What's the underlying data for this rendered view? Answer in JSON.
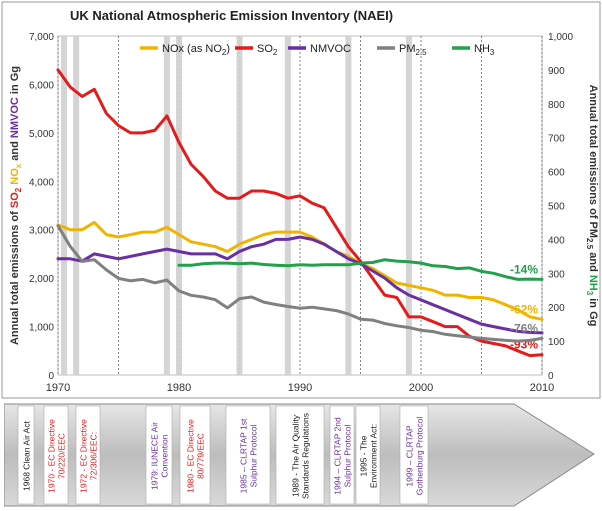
{
  "chart_data": {
    "type": "line",
    "title": "UK National Atmospheric Emission Inventory (NAEI)",
    "xlim": [
      1970,
      2010
    ],
    "x_ticks": [
      "1970",
      "1980",
      "1990",
      "2000",
      "2010"
    ],
    "y_left": {
      "lim": [
        0,
        7000
      ],
      "ticks": [
        "0",
        "1,000",
        "2,000",
        "3,000",
        "4,000",
        "5,000",
        "6,000",
        "7,000"
      ],
      "label_parts": [
        {
          "text": "Annual total emissions of ",
          "color": "#333333"
        },
        {
          "text": "SO",
          "color": "#e51a1a"
        },
        {
          "text": "2",
          "color": "#e51a1a",
          "sub": true
        },
        {
          "text": " ",
          "color": "#333333"
        },
        {
          "text": "NO",
          "color": "#f0b400"
        },
        {
          "text": "x",
          "color": "#f0b400",
          "sub": true
        },
        {
          "text": " and ",
          "color": "#333333"
        },
        {
          "text": "NMVOC",
          "color": "#6a2fa0"
        },
        {
          "text": " in Gg",
          "color": "#333333"
        }
      ]
    },
    "y_right": {
      "lim": [
        0,
        1000
      ],
      "ticks": [
        "0",
        "100",
        "200",
        "300",
        "400",
        "500",
        "600",
        "700",
        "800",
        "900",
        "1,000"
      ],
      "label_parts": [
        {
          "text": "Annual total emissions of PM",
          "color": "#333333"
        },
        {
          "text": "2.5",
          "color": "#333333",
          "sub": true
        },
        {
          "text": " and ",
          "color": "#333333"
        },
        {
          "text": "NH",
          "color": "#22a04b"
        },
        {
          "text": "3",
          "color": "#22a04b",
          "sub": true
        },
        {
          "text": " in Gg",
          "color": "#333333"
        }
      ]
    },
    "events": [
      1970.5,
      1971.5,
      1979,
      1980,
      1985,
      1989,
      1994,
      1999
    ],
    "dotted_lines": [
      1970,
      1975,
      1980,
      1985,
      1990,
      1995,
      2000,
      2005,
      2010
    ],
    "series": [
      {
        "name": "NOx (as NO2)",
        "color": "#f0b400",
        "axis": "left",
        "x": [
          1970,
          1971,
          1972,
          1973,
          1974,
          1975,
          1976,
          1977,
          1978,
          1979,
          1980,
          1981,
          1982,
          1983,
          1984,
          1985,
          1986,
          1987,
          1988,
          1989,
          1990,
          1991,
          1992,
          1993,
          1994,
          1995,
          1996,
          1997,
          1998,
          1999,
          2000,
          2001,
          2002,
          2003,
          2004,
          2005,
          2006,
          2007,
          2008,
          2009,
          2010
        ],
        "values": [
          3100,
          3000,
          3000,
          3150,
          2900,
          2850,
          2900,
          2950,
          2950,
          3050,
          2900,
          2750,
          2700,
          2650,
          2550,
          2700,
          2800,
          2900,
          2950,
          2950,
          2950,
          2850,
          2700,
          2550,
          2450,
          2300,
          2200,
          2050,
          1900,
          1850,
          1800,
          1750,
          1650,
          1650,
          1600,
          1600,
          1550,
          1450,
          1350,
          1200,
          1150
        ],
        "end_label": "-62%"
      },
      {
        "name": "SO2",
        "color": "#e51a1a",
        "axis": "left",
        "x": [
          1970,
          1971,
          1972,
          1973,
          1974,
          1975,
          1976,
          1977,
          1978,
          1979,
          1980,
          1981,
          1982,
          1983,
          1984,
          1985,
          1986,
          1987,
          1988,
          1989,
          1990,
          1991,
          1992,
          1993,
          1994,
          1995,
          1996,
          1997,
          1998,
          1999,
          2000,
          2001,
          2002,
          2003,
          2004,
          2005,
          2006,
          2007,
          2008,
          2009,
          2010
        ],
        "values": [
          6300,
          5950,
          5750,
          5900,
          5400,
          5150,
          5000,
          5000,
          5050,
          5350,
          4800,
          4350,
          4100,
          3800,
          3650,
          3650,
          3800,
          3800,
          3750,
          3650,
          3700,
          3550,
          3450,
          3050,
          2650,
          2350,
          2000,
          1650,
          1600,
          1200,
          1200,
          1100,
          1000,
          1000,
          800,
          700,
          650,
          600,
          500,
          400,
          420
        ],
        "end_label": "-93%"
      },
      {
        "name": "NMVOC",
        "color": "#6a2fa0",
        "axis": "left",
        "x": [
          1970,
          1971,
          1972,
          1973,
          1974,
          1975,
          1976,
          1977,
          1978,
          1979,
          1980,
          1981,
          1982,
          1983,
          1984,
          1985,
          1986,
          1987,
          1988,
          1989,
          1990,
          1991,
          1992,
          1993,
          1994,
          1995,
          1996,
          1997,
          1998,
          1999,
          2000,
          2001,
          2002,
          2003,
          2004,
          2005,
          2006,
          2007,
          2008,
          2009,
          2010
        ],
        "values": [
          2400,
          2400,
          2350,
          2500,
          2450,
          2400,
          2450,
          2500,
          2550,
          2600,
          2550,
          2500,
          2500,
          2500,
          2400,
          2550,
          2650,
          2700,
          2800,
          2800,
          2850,
          2800,
          2700,
          2550,
          2400,
          2300,
          2150,
          2000,
          1800,
          1650,
          1550,
          1450,
          1350,
          1250,
          1150,
          1050,
          1000,
          950,
          900,
          880,
          870
        ],
        "end_label": ""
      },
      {
        "name": "PM2.5",
        "color": "#808080",
        "axis": "right",
        "x": [
          1970,
          1971,
          1972,
          1973,
          1974,
          1975,
          1976,
          1977,
          1978,
          1979,
          1980,
          1981,
          1982,
          1983,
          1984,
          1985,
          1986,
          1987,
          1988,
          1989,
          1990,
          1991,
          1992,
          1993,
          1994,
          1995,
          1996,
          1997,
          1998,
          1999,
          2000,
          2001,
          2002,
          2003,
          2004,
          2005,
          2006,
          2007,
          2008,
          2009,
          2010
        ],
        "values": [
          440,
          380,
          335,
          340,
          310,
          285,
          278,
          282,
          272,
          280,
          248,
          235,
          230,
          222,
          198,
          225,
          230,
          215,
          208,
          202,
          197,
          200,
          195,
          190,
          180,
          165,
          162,
          152,
          145,
          140,
          132,
          128,
          120,
          116,
          112,
          108,
          105,
          102,
          100,
          102,
          108
        ],
        "end_label": "-76%"
      },
      {
        "name": "NH3",
        "color": "#22a04b",
        "axis": "right",
        "x": [
          1980,
          1981,
          1982,
          1983,
          1984,
          1985,
          1986,
          1987,
          1988,
          1989,
          1990,
          1991,
          1992,
          1993,
          1994,
          1995,
          1996,
          1997,
          1998,
          1999,
          2000,
          2001,
          2002,
          2003,
          2004,
          2005,
          2006,
          2007,
          2008,
          2009,
          2010
        ],
        "values": [
          324,
          324,
          328,
          330,
          330,
          328,
          330,
          326,
          324,
          322,
          325,
          324,
          325,
          325,
          325,
          330,
          332,
          340,
          336,
          334,
          330,
          322,
          320,
          314,
          316,
          306,
          300,
          290,
          282,
          283,
          282
        ],
        "end_label": "-14%"
      }
    ],
    "legend": [
      {
        "parts": [
          {
            "text": "NOx (as NO"
          },
          {
            "text": "2",
            "sub": true
          },
          {
            "text": ")"
          }
        ],
        "color": "#f0b400"
      },
      {
        "parts": [
          {
            "text": "SO"
          },
          {
            "text": "2",
            "sub": true
          }
        ],
        "color": "#e51a1a"
      },
      {
        "parts": [
          {
            "text": "NMVOC"
          }
        ],
        "color": "#6a2fa0"
      },
      {
        "parts": [
          {
            "text": "PM"
          },
          {
            "text": "2.5",
            "sub": true
          }
        ],
        "color": "#808080"
      },
      {
        "parts": [
          {
            "text": "NH"
          },
          {
            "text": "3",
            "sub": true
          }
        ],
        "color": "#22a04b"
      }
    ]
  },
  "timeline": {
    "items": [
      {
        "year": 1968,
        "lines": [
          "1968 Clean Air Act"
        ],
        "color": "#1a1a1a",
        "bg": "#ffffff"
      },
      {
        "year": 1970,
        "lines": [
          "1970 - EC Directive",
          "70/220/EEC"
        ],
        "color": "#e51a1a",
        "bg": "#ffffff"
      },
      {
        "year": 1972,
        "lines": [
          "1972 - EC Directive",
          "72/306/EEC:"
        ],
        "color": "#e51a1a",
        "bg": "#ffffff"
      },
      {
        "year": 1979,
        "lines": [
          "1979: IUNECE Air",
          "Convention"
        ],
        "color": "#6a2fa0",
        "bg": "#ffffff"
      },
      {
        "year": 1980,
        "lines": [
          "1980 - EC Directive",
          "80/779/EEC"
        ],
        "color": "#e51a1a",
        "bg": "#ffffff"
      },
      {
        "year": 1985,
        "lines": [
          "1985 – CLRTAP 1st",
          "Sulphur Protocol"
        ],
        "color": "#6a2fa0",
        "bg": "#ffffff"
      },
      {
        "year": 1989,
        "lines": [
          "1989 - The Air Quality",
          "Standards Regulations"
        ],
        "color": "#1a1a1a",
        "bg": "#ffffff"
      },
      {
        "year": 1994,
        "lines": [
          "1994 – CLRTAP 2nd",
          "Sulphur Protocol"
        ],
        "color": "#6a2fa0",
        "bg": "#ffffff"
      },
      {
        "year": 1995,
        "lines": [
          "1995 - The",
          "Environment Act:"
        ],
        "color": "#1a1a1a",
        "bg": "#ffffff"
      },
      {
        "year": 1999,
        "lines": [
          "1999 – CLRTAP",
          "Gothenburg Protocol"
        ],
        "color": "#6a2fa0",
        "bg": "#ffffff"
      }
    ]
  }
}
